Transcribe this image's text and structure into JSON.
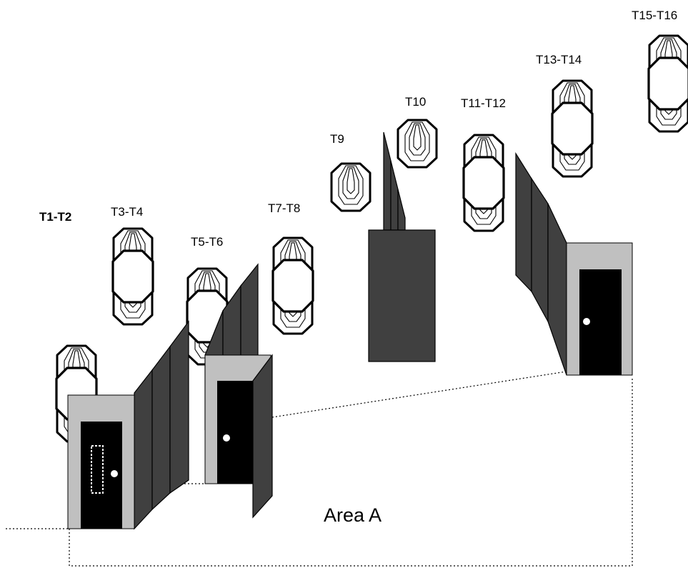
{
  "labels": {
    "t1_t2": "T1-T2",
    "t3_t4": "T3-T4",
    "t5_t6": "T5-T6",
    "t7_t8": "T7-T8",
    "t9": "T9",
    "t10": "T10",
    "t11_t12": "T11-T12",
    "t13_t14": "T13-T14",
    "t15_t16": "T15-T16"
  },
  "area_label": "Area A",
  "colors": {
    "wall": "#404040",
    "wall_edge": "#000000",
    "door_frame": "#c0c0c0",
    "door": "#000000",
    "knob": "#ffffff",
    "dotted_line": "#000000"
  }
}
